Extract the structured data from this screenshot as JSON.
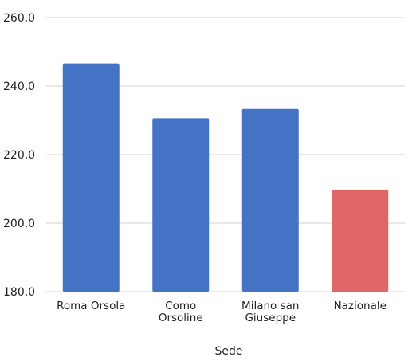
{
  "chart_data": {
    "type": "bar",
    "categories": [
      "Roma Orsola",
      "Como Orsoline",
      "Milano san Giuseppe",
      "Nazionale"
    ],
    "category_lines": [
      [
        "Roma Orsola"
      ],
      [
        "Como",
        "Orsoline"
      ],
      [
        "Milano san",
        "Giuseppe"
      ],
      [
        "Nazionale"
      ]
    ],
    "values": [
      246.6,
      230.6,
      233.3,
      209.8
    ],
    "bar_colors": [
      "#4472c4",
      "#4472c4",
      "#4472c4",
      "#e06666"
    ],
    "title": "",
    "xlabel": "Sede",
    "ylabel": "",
    "ylim": [
      180,
      260
    ],
    "yticks": [
      180,
      200,
      220,
      240,
      260
    ],
    "ytick_labels": [
      "180,0",
      "200,0",
      "220,0",
      "240,0",
      "260,0"
    ],
    "grid": true,
    "gridline_color": "#d0d0d0",
    "legend": "none"
  }
}
